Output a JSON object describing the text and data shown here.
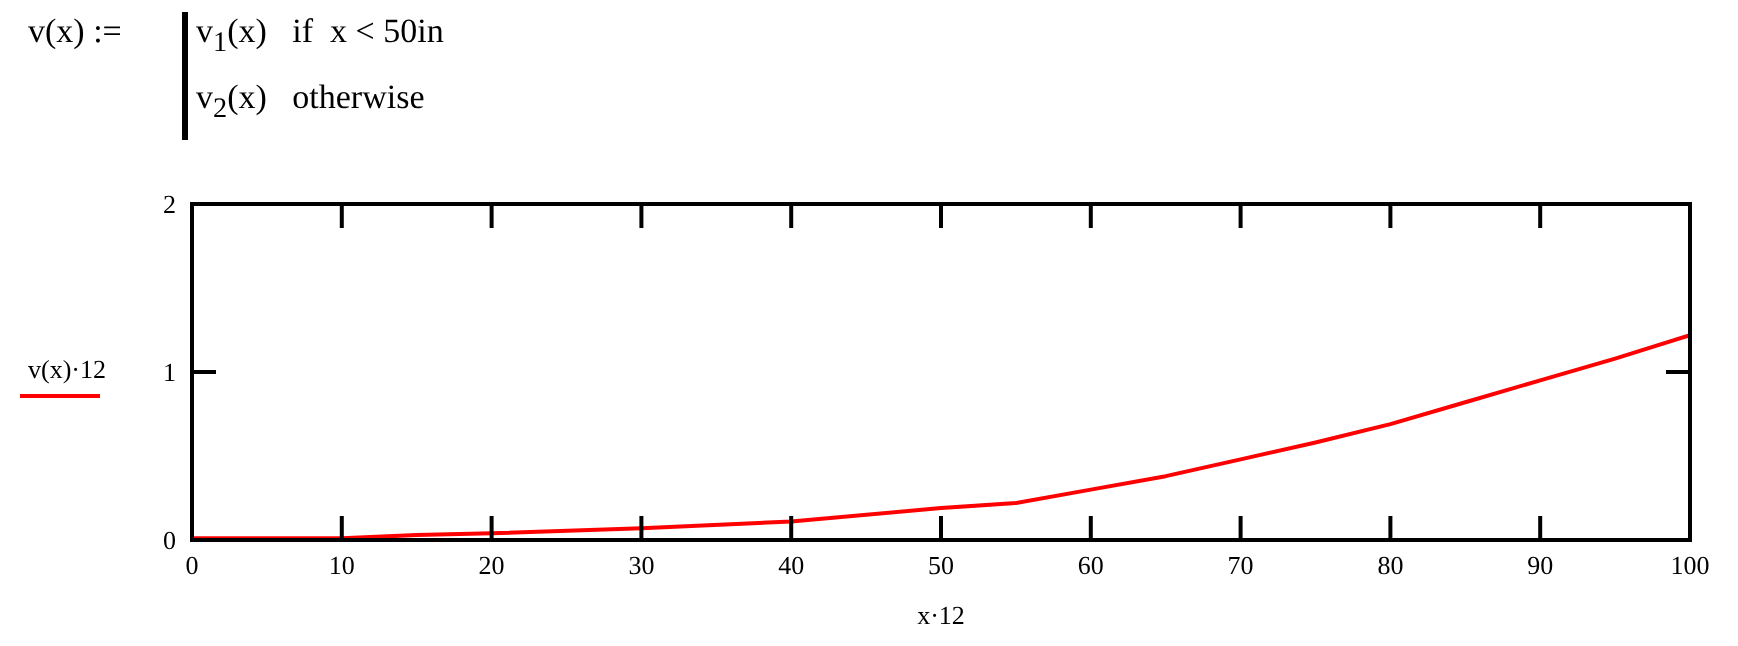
{
  "chart_data": {
    "type": "line",
    "xlabel": "x·12",
    "legend": "left",
    "annotations": [
      "v(x) :=",
      "v$_{1}$(x)   if  x < 50in",
      "v$_{2}$(x)   otherwise"
    ],
    "x": [
      0,
      10,
      15,
      20,
      30,
      40,
      50,
      55,
      60,
      65,
      70,
      75,
      80,
      85,
      90,
      95,
      100
    ],
    "series": [
      {
        "name": "v(x)·12",
        "color": "#ff0000",
        "values": [
          0.01,
          0.01,
          0.03,
          0.04,
          0.07,
          0.11,
          0.19,
          0.22,
          0.3,
          0.38,
          0.48,
          0.58,
          0.69,
          0.82,
          0.95,
          1.08,
          1.22
        ]
      }
    ],
    "xlim": [
      0,
      100
    ],
    "xticks": [
      0,
      10,
      20,
      30,
      40,
      50,
      60,
      70,
      80,
      90,
      100
    ],
    "ylim": [
      0,
      2
    ],
    "yticks": [
      0,
      1,
      2
    ],
    "grid": false,
    "marker": "none",
    "line_style": "solid"
  }
}
